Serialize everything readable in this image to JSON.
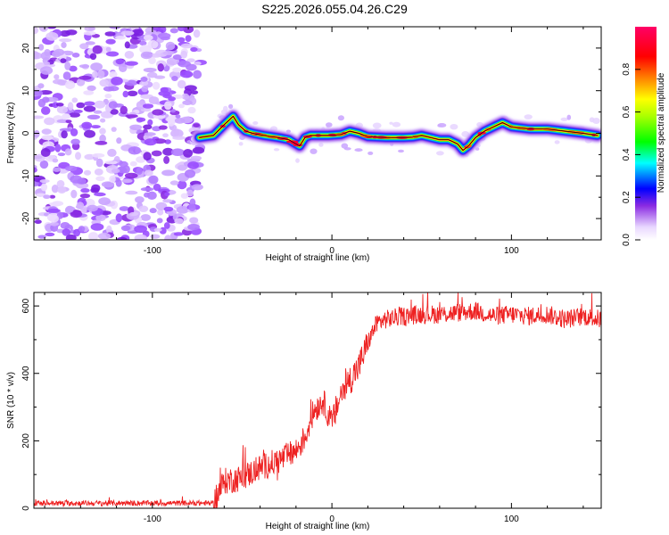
{
  "title": "S225.2026.055.04.26.C29",
  "chart_data": [
    {
      "type": "heatmap",
      "name": "spectrogram",
      "xlabel": "Height of straight line (km)",
      "ylabel": "Frequency (Hz)",
      "xlim": [
        -166,
        150
      ],
      "ylim": [
        -25,
        25
      ],
      "xticks": [
        -100,
        0,
        100
      ],
      "xtick_labels": [
        "-100",
        "0",
        "100"
      ],
      "yticks": [
        -20,
        -10,
        0,
        10,
        20
      ],
      "ytick_labels": [
        "-20",
        "-10",
        "0",
        "10",
        "20"
      ],
      "noise_region_x": [
        -166,
        -73
      ],
      "carrier_track": {
        "x": [
          -74,
          -66,
          -60,
          -55,
          -52,
          -48,
          -44,
          -38,
          -30,
          -24,
          -18,
          -15,
          -12,
          -8,
          -2,
          5,
          10,
          15,
          20,
          30,
          40,
          45,
          50,
          55,
          60,
          65,
          70,
          73,
          76,
          80,
          85,
          90,
          95,
          100,
          110,
          120,
          130,
          140,
          148
        ],
        "y": [
          -1,
          -0.5,
          2,
          4,
          2,
          0.5,
          0,
          -0.5,
          -1,
          -1.5,
          -3,
          -1,
          -0.5,
          -0.5,
          -0.5,
          -0.3,
          0.5,
          0,
          -0.8,
          -1,
          -1,
          -0.9,
          -0.5,
          -1,
          -1.5,
          -1.5,
          -2.5,
          -4,
          -3,
          -1,
          0.5,
          1.5,
          2.5,
          1.5,
          1,
          1,
          0.5,
          0,
          -0.5
        ]
      },
      "colorbar": {
        "label": "Normalized spectral amplitude",
        "range": [
          0,
          1
        ],
        "ticks": [
          0.0,
          0.2,
          0.4,
          0.6,
          0.8
        ],
        "tick_labels": [
          "0.0",
          "0.2",
          "0.4",
          "0.6",
          "0.8"
        ]
      }
    },
    {
      "type": "line",
      "name": "snr",
      "xlabel": "Height of straight line (km)",
      "ylabel": "SNR (10 * v/v)",
      "xlim": [
        -166,
        150
      ],
      "ylim": [
        0,
        640
      ],
      "xticks": [
        -100,
        0,
        100
      ],
      "xtick_labels": [
        "-100",
        "0",
        "100"
      ],
      "yticks": [
        0,
        200,
        400,
        600
      ],
      "ytick_labels": [
        "0",
        "200",
        "400",
        "600"
      ],
      "series": [
        {
          "name": "SNR",
          "color": "#ee2222",
          "trend_x": [
            -166,
            -66,
            -60,
            -50,
            -40,
            -30,
            -20,
            -15,
            -10,
            -5,
            0,
            5,
            10,
            15,
            20,
            25,
            30,
            40,
            50,
            60,
            70,
            80,
            90,
            100,
            110,
            120,
            130,
            140,
            150
          ],
          "trend_y": [
            15,
            15,
            80,
            90,
            120,
            140,
            170,
            210,
            290,
            320,
            250,
            340,
            380,
            420,
            490,
            550,
            560,
            570,
            575,
            575,
            580,
            585,
            570,
            575,
            570,
            575,
            560,
            570,
            560
          ],
          "noise_amp": [
            {
              "x_from": -166,
              "x_to": -66,
              "amp": 8
            },
            {
              "x_from": -66,
              "x_to": 0,
              "amp": 40
            },
            {
              "x_from": 0,
              "x_to": 20,
              "amp": 45
            },
            {
              "x_from": 20,
              "x_to": 150,
              "amp": 28
            }
          ]
        }
      ]
    }
  ]
}
